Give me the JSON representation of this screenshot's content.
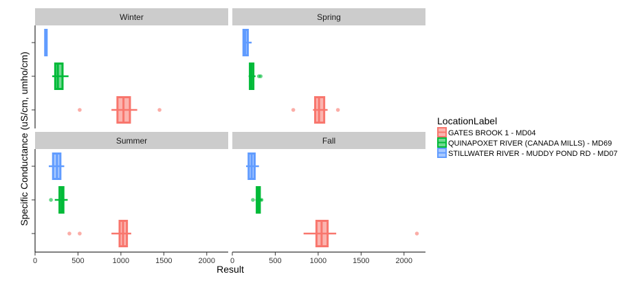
{
  "chart_data": {
    "type": "boxplot",
    "orientation": "horizontal",
    "facets": [
      "Winter",
      "Spring",
      "Summer",
      "Fall"
    ],
    "xlabel": "Result",
    "ylabel": "Specific Conductance (uS/cm, umho/cm)",
    "xlim": [
      0,
      2250
    ],
    "xticks": [
      0,
      500,
      1000,
      1500,
      2000
    ],
    "grid": false,
    "legend": {
      "title": "LocationLabel",
      "placement": "right",
      "entries": [
        {
          "name": "GATES BROOK 1 - MD04",
          "color": "#F8766D"
        },
        {
          "name": "QUINAPOXET RIVER (CANADA MILLS) - MD69",
          "color": "#00BA38"
        },
        {
          "name": "STILLWATER RIVER - MUDDY POND RD - MD07",
          "color": "#619CFF"
        }
      ]
    },
    "series": [
      {
        "name": "GATES BROOK 1 - MD04",
        "color": "#F8766D",
        "boxes": {
          "Winter": {
            "whisker_low": 890,
            "q1": 960,
            "median": 1030,
            "q3": 1105,
            "whisker_high": 1190,
            "outliers": [
              520,
              1450
            ]
          },
          "Spring": {
            "whisker_low": 940,
            "q1": 965,
            "median": 1010,
            "q3": 1070,
            "whisker_high": 1110,
            "outliers": [
              710,
              1230
            ]
          },
          "Summer": {
            "whisker_low": 890,
            "q1": 985,
            "median": 1025,
            "q3": 1070,
            "whisker_high": 1120,
            "outliers": [
              400,
              520
            ]
          },
          "Fall": {
            "whisker_low": 830,
            "q1": 980,
            "median": 1040,
            "q3": 1110,
            "whisker_high": 1210,
            "outliers": [
              2150
            ]
          }
        }
      },
      {
        "name": "QUINAPOXET RIVER (CANADA MILLS) - MD69",
        "color": "#00BA38",
        "boxes": {
          "Winter": {
            "whisker_low": 200,
            "q1": 235,
            "median": 265,
            "q3": 320,
            "whisker_high": 390,
            "outliers": []
          },
          "Spring": {
            "whisker_low": 190,
            "q1": 205,
            "median": 220,
            "q3": 245,
            "whisker_high": 270,
            "outliers": [
              310,
              330
            ]
          },
          "Summer": {
            "whisker_low": 230,
            "q1": 285,
            "median": 310,
            "q3": 330,
            "whisker_high": 380,
            "outliers": [
              185
            ]
          },
          "Fall": {
            "whisker_low": 270,
            "q1": 285,
            "median": 300,
            "q3": 320,
            "whisker_high": 350,
            "outliers": [
              240,
              340
            ]
          }
        }
      },
      {
        "name": "STILLWATER RIVER - MUDDY POND RD - MD07",
        "color": "#619CFF",
        "boxes": {
          "Winter": {
            "whisker_low": 115,
            "q1": 118,
            "median": 125,
            "q3": 135,
            "whisker_high": 140,
            "outliers": []
          },
          "Spring": {
            "whisker_low": 120,
            "q1": 130,
            "median": 150,
            "q3": 180,
            "whisker_high": 225,
            "outliers": []
          },
          "Summer": {
            "whisker_low": 160,
            "q1": 210,
            "median": 255,
            "q3": 295,
            "whisker_high": 340,
            "outliers": []
          },
          "Fall": {
            "whisker_low": 160,
            "q1": 190,
            "median": 225,
            "q3": 260,
            "whisker_high": 310,
            "outliers": []
          }
        }
      }
    ]
  }
}
